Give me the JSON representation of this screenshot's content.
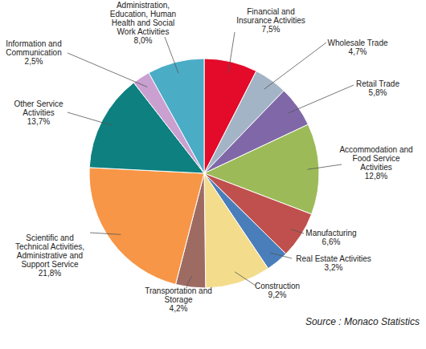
{
  "chart_data": {
    "type": "pie",
    "categories": [
      "Financial and\nInsurance Activities",
      "Wholesale Trade",
      "Retail Trade",
      "Accommodation and\nFood Service\nActivities",
      "Manufacturing",
      "Real Estate Activities",
      "Construction",
      "Transportation and\nStorage",
      "Scientific and\nTechnical Activities,\nAdministrative and\nSupport Service",
      "Other Service\nActivities",
      "Information and\nCommunication",
      "Administration,\nEducation, Human\nHealth and Social\nWork Activities"
    ],
    "values": [
      7.5,
      4.7,
      5.8,
      12.8,
      6.6,
      3.2,
      9.2,
      4.2,
      21.8,
      13.7,
      2.5,
      8.0
    ],
    "value_labels": [
      "7,5%",
      "4,7%",
      "5,8%",
      "12,8%",
      "6,6%",
      "3,2%",
      "9,2%",
      "4,2%",
      "21,8%",
      "13,7%",
      "2,5%",
      "8,0%"
    ],
    "colors": [
      "#e30a2a",
      "#a3b4c6",
      "#8068a8",
      "#9cbb58",
      "#c0504d",
      "#4a7ebb",
      "#f3dc8c",
      "#9e6b63",
      "#f79646",
      "#0e8080",
      "#c9a0d0",
      "#4bacc6"
    ],
    "data_labels": true,
    "annotations": [
      "Source : Monaco Statistics"
    ]
  }
}
